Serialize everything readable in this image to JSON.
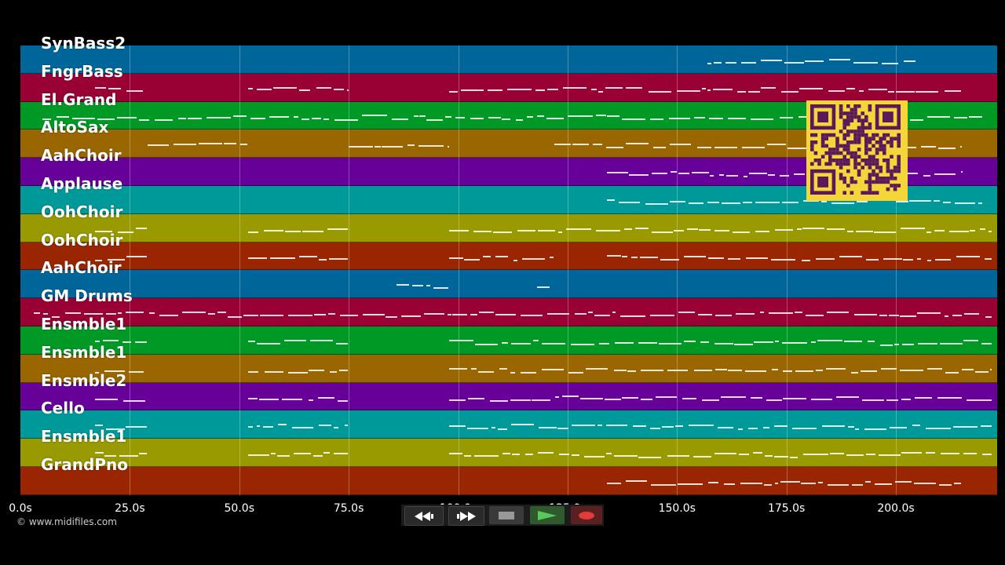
{
  "credit": "© www.midifiles.com",
  "tracks": [
    {
      "label": "SynBass2",
      "color": "#006699"
    },
    {
      "label": "FngrBass",
      "color": "#990033"
    },
    {
      "label": "El.Grand",
      "color": "#009926"
    },
    {
      "label": "AltoSax",
      "color": "#996600"
    },
    {
      "label": "AahChoir",
      "color": "#660099"
    },
    {
      "label": "Applause",
      "color": "#009999"
    },
    {
      "label": "OohChoir",
      "color": "#999900"
    },
    {
      "label": "OohChoir",
      "color": "#992600"
    },
    {
      "label": "AahChoir",
      "color": "#006699"
    },
    {
      "label": "GM Drums",
      "color": "#990033"
    },
    {
      "label": "Ensmble1",
      "color": "#009926"
    },
    {
      "label": "Ensmble1",
      "color": "#996600"
    },
    {
      "label": "Ensmble2",
      "color": "#660099"
    },
    {
      "label": "Cello",
      "color": "#009999"
    },
    {
      "label": "Ensmble1",
      "color": "#999900"
    },
    {
      "label": "GrandPno",
      "color": "#992600"
    }
  ],
  "timeline": {
    "ticks": [
      "0.0s",
      "25.0s",
      "50.0s",
      "75.0s",
      "100.0s",
      "125.0s",
      "150.0s",
      "175.0s",
      "200.0s"
    ]
  },
  "transport": {
    "rewind_icon": "rewind-icon",
    "fast_forward_icon": "fast-forward-icon",
    "stop_icon": "stop-icon",
    "play_icon": "play-icon",
    "record_icon": "record-icon",
    "play_color": "#5ac85a",
    "record_color": "#e03c3c"
  },
  "qr_code": "qr-code-image"
}
